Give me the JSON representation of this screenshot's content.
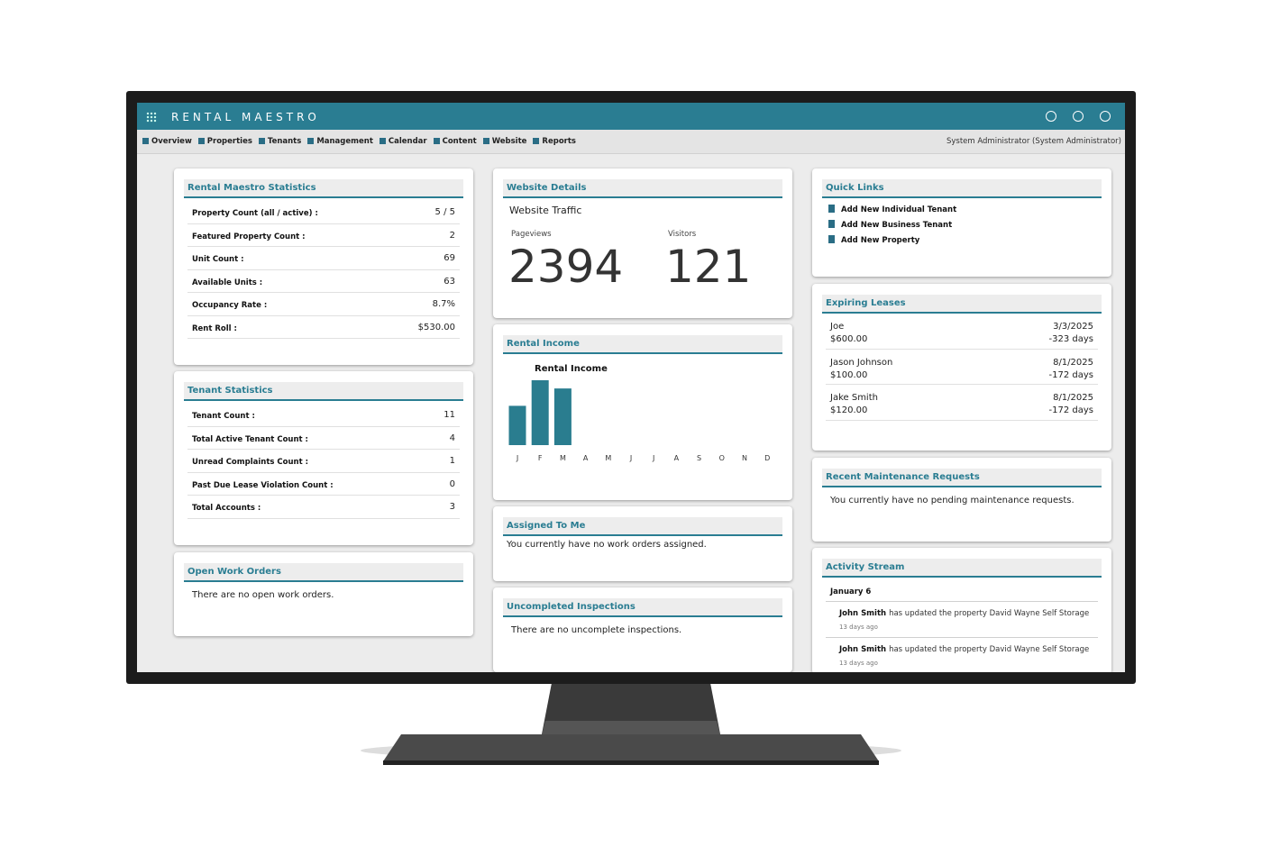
{
  "header": {
    "brand": "RENTAL MAESTRO"
  },
  "nav": {
    "items": [
      "Overview",
      "Properties",
      "Tenants",
      "Management",
      "Calendar",
      "Content",
      "Website",
      "Reports"
    ],
    "user": "System Administrator (System Administrator)"
  },
  "rental_stats": {
    "title": "Rental Maestro Statistics",
    "rows": [
      [
        "Property Count (all / active) :",
        "5 / 5"
      ],
      [
        "Featured Property Count :",
        "2"
      ],
      [
        "Unit Count :",
        "69"
      ],
      [
        "Available Units :",
        "63"
      ],
      [
        "Occupancy Rate :",
        "8.7%"
      ],
      [
        "Rent Roll :",
        "$530.00"
      ]
    ]
  },
  "tenant_stats": {
    "title": "Tenant Statistics",
    "rows": [
      [
        "Tenant Count :",
        "11"
      ],
      [
        "Total Active Tenant Count :",
        "4"
      ],
      [
        "Unread Complaints Count :",
        "1"
      ],
      [
        "Past Due Lease Violation Count :",
        "0"
      ],
      [
        "Total Accounts :",
        "3"
      ]
    ]
  },
  "open_work_orders": {
    "title": "Open Work Orders",
    "message": "There are no open work orders."
  },
  "website_details": {
    "title": "Website Details",
    "subtitle": "Website Traffic",
    "pageviews_label": "Pageviews",
    "pageviews": "2394",
    "visitors_label": "Visitors",
    "visitors": "121"
  },
  "rental_income": {
    "title": "Rental Income",
    "chart": {
      "type": "bar",
      "title": "Rental Income",
      "categories": [
        "J",
        "F",
        "M",
        "A",
        "M",
        "J",
        "J",
        "A",
        "S",
        "O",
        "N",
        "D"
      ],
      "values": [
        43,
        71,
        62,
        null,
        null,
        null,
        null,
        null,
        null,
        null,
        null,
        null
      ],
      "color": "#2a7d8f"
    }
  },
  "assigned_to_me": {
    "title": "Assigned To Me",
    "message": "You currently have no work orders assigned."
  },
  "uncompleted_inspections": {
    "title": "Uncompleted Inspections",
    "message": "There are no uncomplete inspections."
  },
  "quick_links": {
    "title": "Quick Links",
    "links": [
      "Add New Individual Tenant",
      "Add New Business Tenant",
      "Add New Property"
    ]
  },
  "expiring_leases": {
    "title": "Expiring Leases",
    "leases": [
      {
        "name": "Joe",
        "amount": "$600.00",
        "date": "3/3/2025",
        "days": "-323 days"
      },
      {
        "name": "Jason Johnson",
        "amount": "$100.00",
        "date": "8/1/2025",
        "days": "-172 days"
      },
      {
        "name": "Jake Smith",
        "amount": "$120.00",
        "date": "8/1/2025",
        "days": "-172 days"
      }
    ]
  },
  "maintenance_requests": {
    "title": "Recent Maintenance Requests",
    "message": "You currently have no pending maintenance requests."
  },
  "activity_stream": {
    "title": "Activity Stream",
    "date": "January 6",
    "entries": [
      {
        "actor": "John Smith",
        "text": "has updated the property David Wayne Self Storage",
        "time": "13 days ago"
      },
      {
        "actor": "John Smith",
        "text": "has updated the property David Wayne Self Storage",
        "time": "13 days ago"
      }
    ]
  }
}
